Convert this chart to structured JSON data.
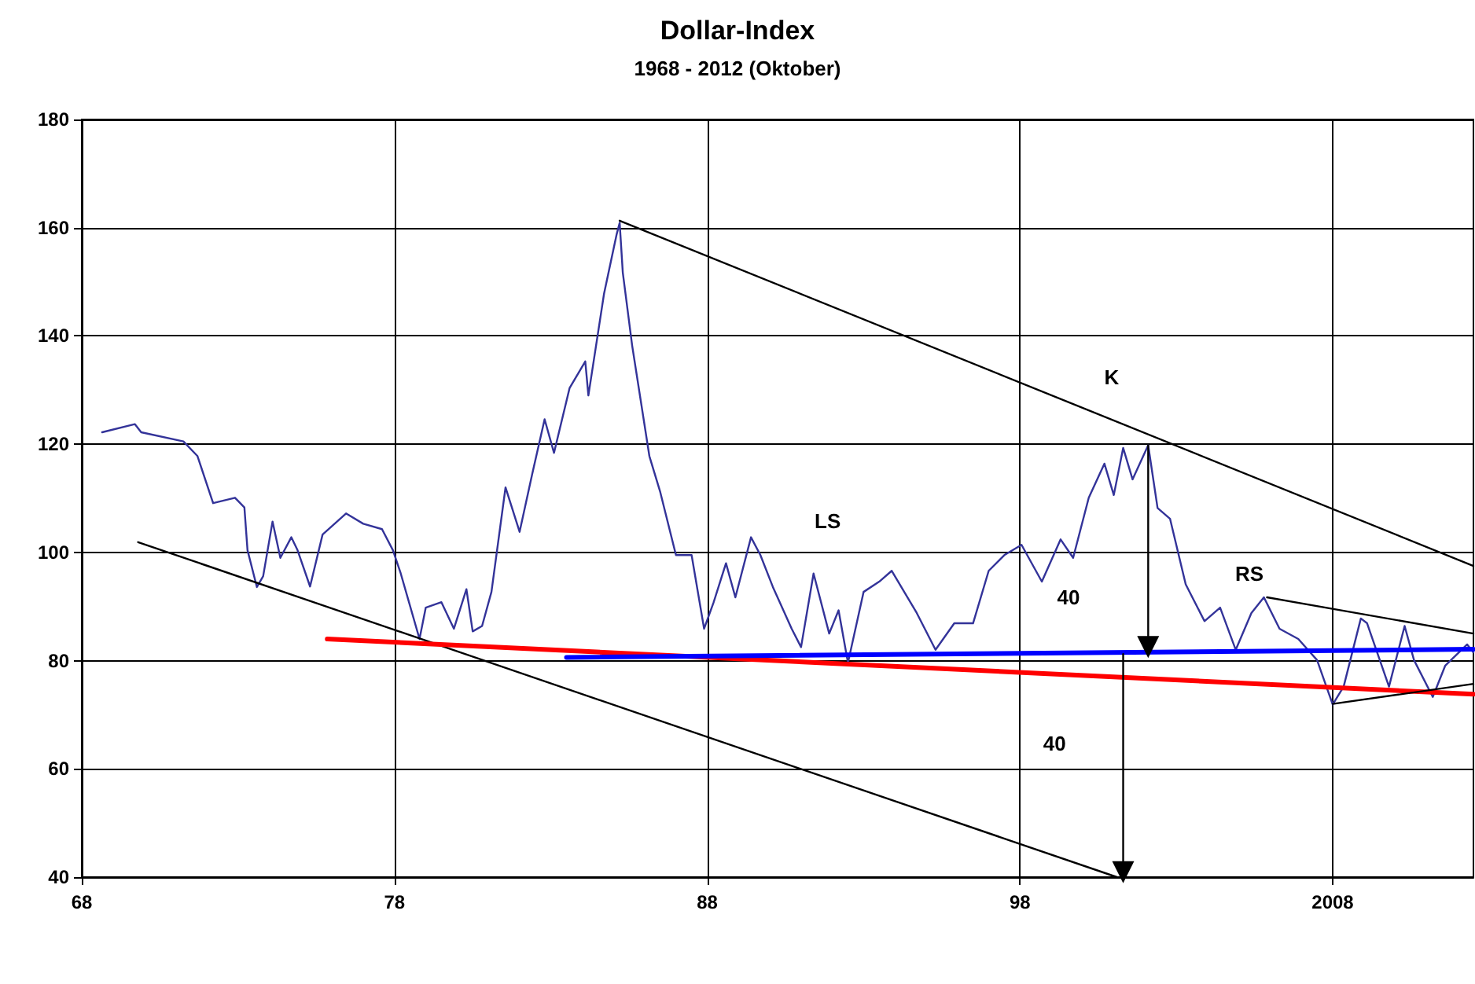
{
  "chart_data": {
    "type": "line",
    "title": "Dollar-Index",
    "subtitle": "1968 - 2012 (Oktober)",
    "xlim": [
      1968,
      2012.5
    ],
    "xticks": [
      {
        "value": 1968,
        "label": "68"
      },
      {
        "value": 1978,
        "label": "78"
      },
      {
        "value": 1988,
        "label": "88"
      },
      {
        "value": 1998,
        "label": "98"
      },
      {
        "value": 2008,
        "label": "2008"
      }
    ],
    "ylim": [
      40,
      180
    ],
    "yticks": [
      40,
      60,
      80,
      100,
      120,
      140,
      160,
      180
    ],
    "grid": true,
    "marker": "none",
    "line_style": "solid",
    "series": [
      {
        "color": "#333399",
        "x": [
          1968.65,
          1969.7,
          1969.9,
          1971.25,
          1971.7,
          1972.2,
          1972.9,
          1973.2,
          1973.3,
          1973.6,
          1973.8,
          1974.1,
          1974.35,
          1974.7,
          1974.9,
          1975.3,
          1975.7,
          1976.45,
          1977,
          1977.6,
          1977.95,
          1978.2,
          1978.8,
          1979,
          1979.5,
          1979.9,
          1980.3,
          1980.5,
          1980.8,
          1981.1,
          1981.55,
          1982,
          1982.4,
          1982.8,
          1983.1,
          1983.6,
          1984.1,
          1984.2,
          1984.7,
          1985.1,
          1985.2,
          1985.3,
          1985.6,
          1986.15,
          1986.5,
          1987,
          1987.5,
          1987.9,
          1988.2,
          1988.6,
          1988.9,
          1989.4,
          1989.7,
          1990.1,
          1990.7,
          1991,
          1991.4,
          1991.9,
          1992.2,
          1992.5,
          1993,
          1993.5,
          1993.9,
          1994.7,
          1995.3,
          1995.9,
          1996.5,
          1997,
          1997.5,
          1998.05,
          1998.7,
          1999.3,
          1999.7,
          2000.2,
          2000.7,
          2001,
          2001.3,
          2001.6,
          2002.1,
          2002.4,
          2002.8,
          2003.3,
          2003.9,
          2004.4,
          2004.9,
          2005.4,
          2005.8,
          2006.3,
          2006.9,
          2007.5,
          2008,
          2008.35,
          2008.9,
          2009.1,
          2009.8,
          2010.3,
          2010.6,
          2011.2,
          2011.6,
          2012.3,
          2012.5
        ],
        "values": [
          122.2,
          123.7,
          122.2,
          120.5,
          117.8,
          109.1,
          110.1,
          108.3,
          100.4,
          93.6,
          95.6,
          105.7,
          99,
          102.8,
          100.4,
          93.7,
          103.3,
          107.2,
          105.3,
          104.3,
          100.4,
          96.1,
          84,
          89.8,
          90.8,
          85.9,
          93.2,
          85.4,
          86.4,
          92.7,
          112,
          103.8,
          114.4,
          124.6,
          118.4,
          130.4,
          135.3,
          129,
          147.8,
          158.7,
          160.9,
          151.7,
          138.2,
          117.8,
          111.1,
          99.5,
          99.5,
          85.9,
          90.7,
          98,
          91.7,
          102.8,
          99.5,
          93.6,
          85.9,
          82.5,
          96.1,
          85,
          89.3,
          79.6,
          92.7,
          94.6,
          96.6,
          88.8,
          82,
          86.9,
          86.9,
          96.6,
          99.5,
          101.4,
          94.6,
          102.4,
          99,
          110.1,
          116.4,
          110.6,
          119.3,
          113.5,
          119.8,
          108.2,
          106.2,
          94.1,
          87.3,
          89.8,
          82,
          88.8,
          91.7,
          85.9,
          84,
          80.1,
          71.9,
          75.2,
          87.8,
          86.9,
          75.2,
          86.4,
          80.1,
          73.3,
          79.1,
          83,
          81.5
        ]
      },
      {
        "color": "#000000",
        "x": [
          1985.2,
          2012.5
        ],
        "values": [
          161.3,
          97.5
        ]
      },
      {
        "color": "#000000",
        "x": [
          1969.8,
          2001.1
        ],
        "values": [
          101.9,
          40
        ]
      },
      {
        "color": "#ff0000",
        "x": [
          1975.85,
          2012.5
        ],
        "values": [
          84.0,
          73.8
        ]
      },
      {
        "color": "#0000ff",
        "x": [
          1983.5,
          2012.5
        ],
        "values": [
          80.6,
          82.1
        ]
      },
      {
        "color": "#000000",
        "x": [
          2005.9,
          2012.5
        ],
        "values": [
          91.7,
          85.0
        ]
      },
      {
        "color": "#000000",
        "x": [
          2008.0,
          2012.5
        ],
        "values": [
          72,
          75.7
        ]
      },
      {
        "color": "#000000",
        "x": [
          2002.1,
          2002.1
        ],
        "values": [
          119.8,
          82.5
        ],
        "marker": "triangle"
      },
      {
        "color": "#000000",
        "x": [
          2001.3,
          2001.3
        ],
        "values": [
          81.2,
          40.9
        ],
        "marker": "triangle"
      }
    ],
    "annotations": [
      "K",
      "LS",
      "RS",
      "40",
      "40"
    ]
  }
}
